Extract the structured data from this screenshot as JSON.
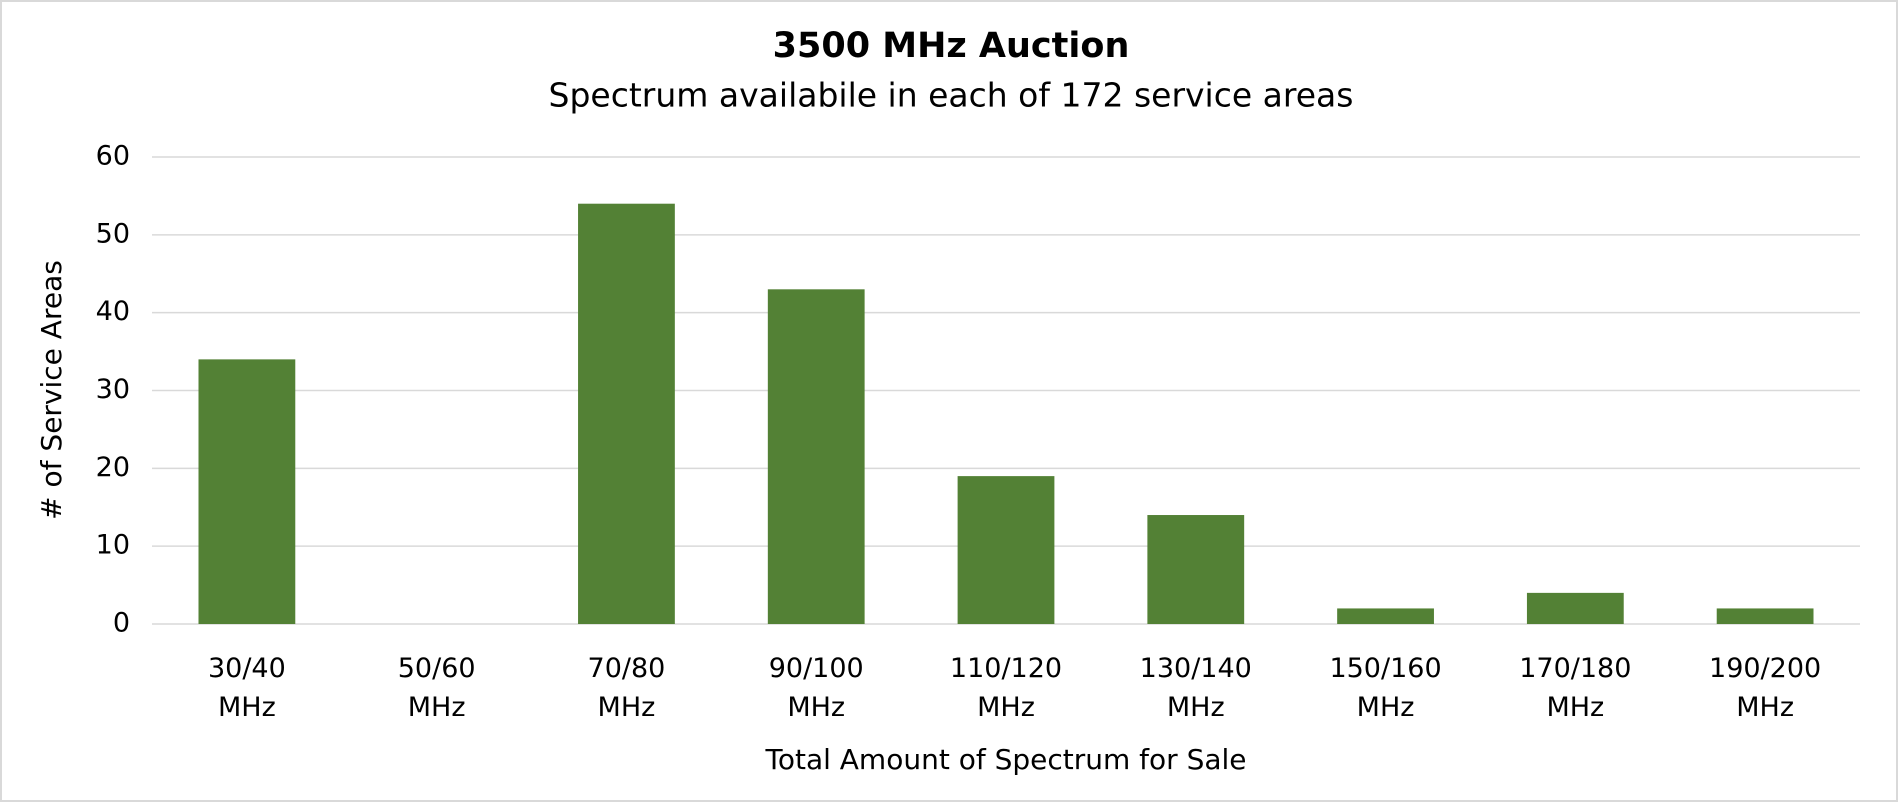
{
  "chart_data": {
    "type": "bar",
    "title": "3500 MHz Auction",
    "subtitle": "Spectrum availabile in each of 172 service areas",
    "x_label": "Total Amount of Spectrum for Sale",
    "y_label": "# of Service Areas",
    "categories": [
      "30/40\nMHz",
      "50/60\nMHz",
      "70/80\nMHz",
      "90/100\nMHz",
      "110/120\nMHz",
      "130/140\nMHz",
      "150/160\nMHz",
      "170/180\nMHz",
      "190/200\nMHz"
    ],
    "values": [
      34,
      0,
      54,
      43,
      19,
      14,
      2,
      4,
      2
    ],
    "color": "#538135",
    "ylim": [
      0,
      60
    ],
    "yticks": [
      0,
      10,
      20,
      30,
      40,
      50,
      60
    ],
    "grid": true
  }
}
